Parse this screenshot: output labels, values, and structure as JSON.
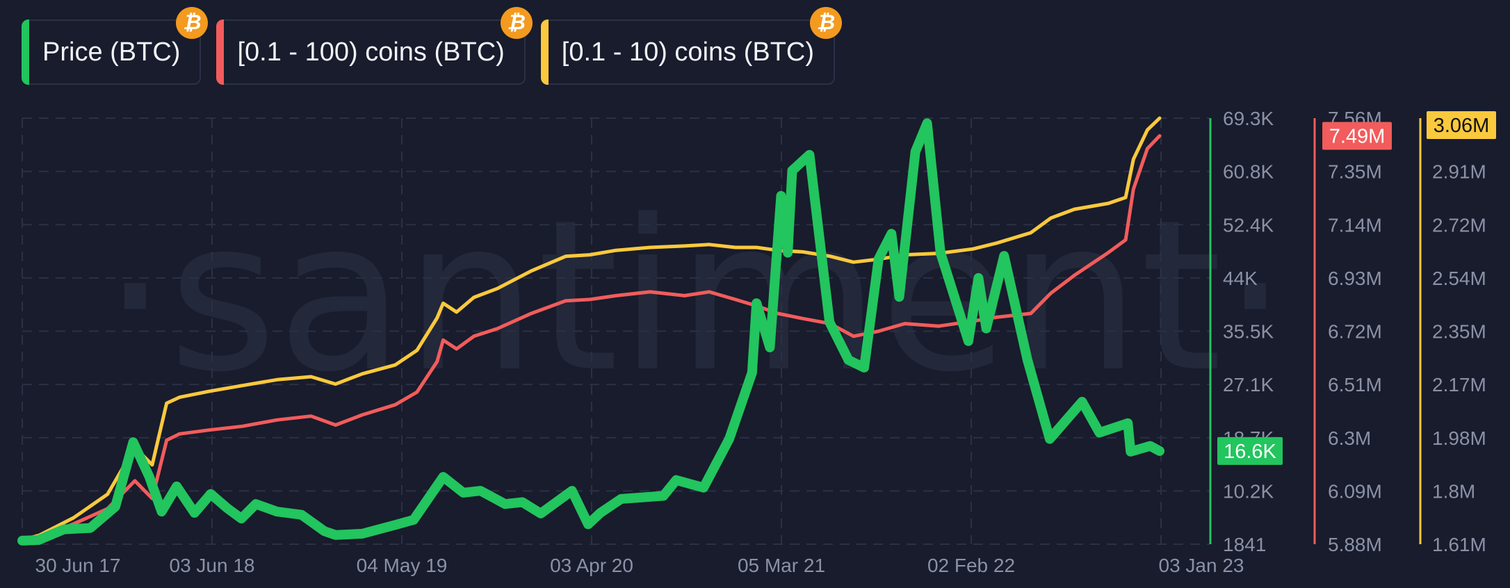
{
  "legend": [
    {
      "label": "Price (BTC)",
      "color": "#22c55e",
      "icon": "bitcoin-icon"
    },
    {
      "label": "[0.1 - 100) coins (BTC)",
      "color": "#f25c5c",
      "icon": "bitcoin-icon"
    },
    {
      "label": "[0.1 - 10) coins (BTC)",
      "color": "#fbc93d",
      "icon": "bitcoin-icon"
    }
  ],
  "watermark": "·santiment·",
  "chart_data": {
    "type": "line",
    "x_ticks": [
      "30 Jun 17",
      "03 Jun 18",
      "04 May 19",
      "03 Apr 20",
      "05 Mar 21",
      "02 Feb 22",
      "03 Jan 23"
    ],
    "axes": {
      "price": {
        "labels": [
          "69.3K",
          "60.8K",
          "52.4K",
          "44K",
          "35.5K",
          "27.1K",
          "18.7K",
          "10.2K",
          "1841"
        ],
        "current": "16.6K",
        "color": "#22c55e"
      },
      "coins_100": {
        "labels": [
          "7.56M",
          "7.35M",
          "7.14M",
          "6.93M",
          "6.72M",
          "6.51M",
          "6.3M",
          "6.09M",
          "5.88M"
        ],
        "current": "7.49M",
        "color": "#f25c5c"
      },
      "coins_10": {
        "labels": [
          "3.06M",
          "2.91M",
          "2.72M",
          "2.54M",
          "2.35M",
          "2.17M",
          "1.98M",
          "1.8M",
          "1.61M"
        ],
        "current": "3.06M",
        "color": "#fbc93d"
      }
    },
    "series": [
      {
        "name": "Price (BTC)",
        "color": "#22c55e",
        "axis": "price",
        "points": [
          [
            "2017-06-01",
            2400
          ],
          [
            "2017-06-30",
            2500
          ],
          [
            "2017-08-15",
            4200
          ],
          [
            "2017-10-01",
            4400
          ],
          [
            "2017-11-15",
            7800
          ],
          [
            "2017-12-17",
            18000
          ],
          [
            "2018-01-15",
            12500
          ],
          [
            "2018-02-06",
            7000
          ],
          [
            "2018-03-05",
            11000
          ],
          [
            "2018-04-06",
            6800
          ],
          [
            "2018-05-05",
            9800
          ],
          [
            "2018-06-03",
            7600
          ],
          [
            "2018-06-29",
            5900
          ],
          [
            "2018-07-25",
            8200
          ],
          [
            "2018-09-01",
            7000
          ],
          [
            "2018-10-15",
            6500
          ],
          [
            "2018-11-25",
            3900
          ],
          [
            "2018-12-15",
            3300
          ],
          [
            "2019-02-01",
            3500
          ],
          [
            "2019-04-01",
            4900
          ],
          [
            "2019-05-04",
            5700
          ],
          [
            "2019-06-26",
            12500
          ],
          [
            "2019-08-01",
            10000
          ],
          [
            "2019-09-01",
            10300
          ],
          [
            "2019-10-15",
            8200
          ],
          [
            "2019-11-15",
            8500
          ],
          [
            "2019-12-18",
            6700
          ],
          [
            "2020-02-12",
            10300
          ],
          [
            "2020-03-12",
            5000
          ],
          [
            "2020-04-03",
            6800
          ],
          [
            "2020-05-10",
            9000
          ],
          [
            "2020-07-25",
            9500
          ],
          [
            "2020-08-17",
            12000
          ],
          [
            "2020-10-05",
            10800
          ],
          [
            "2020-11-20",
            18500
          ],
          [
            "2020-12-31",
            29000
          ],
          [
            "2021-01-08",
            40000
          ],
          [
            "2021-02-01",
            33000
          ],
          [
            "2021-02-21",
            57000
          ],
          [
            "2021-03-05",
            48000
          ],
          [
            "2021-03-13",
            61000
          ],
          [
            "2021-04-13",
            63500
          ],
          [
            "2021-05-19",
            37000
          ],
          [
            "2021-06-22",
            31000
          ],
          [
            "2021-07-20",
            29800
          ],
          [
            "2021-08-15",
            47000
          ],
          [
            "2021-09-07",
            51000
          ],
          [
            "2021-09-21",
            41000
          ],
          [
            "2021-10-20",
            64000
          ],
          [
            "2021-11-10",
            68500
          ],
          [
            "2021-12-04",
            48000
          ],
          [
            "2022-01-23",
            34000
          ],
          [
            "2022-02-10",
            44000
          ],
          [
            "2022-02-24",
            36000
          ],
          [
            "2022-03-28",
            47500
          ],
          [
            "2022-05-09",
            31000
          ],
          [
            "2022-06-18",
            18500
          ],
          [
            "2022-08-15",
            24400
          ],
          [
            "2022-09-15",
            19500
          ],
          [
            "2022-11-05",
            21000
          ],
          [
            "2022-11-10",
            16500
          ],
          [
            "2022-12-15",
            17400
          ],
          [
            "2023-01-01",
            16600
          ]
        ]
      },
      {
        "name": "[0.1 - 100) coins (BTC)",
        "color": "#f25c5c",
        "axis": "coins_100",
        "points": [
          [
            "2017-06-01",
            5.895
          ],
          [
            "2017-07-01",
            5.91
          ],
          [
            "2017-09-01",
            5.96
          ],
          [
            "2017-11-01",
            6.02
          ],
          [
            "2017-12-20",
            6.13
          ],
          [
            "2018-01-20",
            6.06
          ],
          [
            "2018-02-15",
            6.29
          ],
          [
            "2018-03-10",
            6.315
          ],
          [
            "2018-05-01",
            6.33
          ],
          [
            "2018-07-01",
            6.345
          ],
          [
            "2018-09-01",
            6.37
          ],
          [
            "2018-11-01",
            6.385
          ],
          [
            "2018-12-15",
            6.35
          ],
          [
            "2019-02-01",
            6.39
          ],
          [
            "2019-04-01",
            6.43
          ],
          [
            "2019-05-10",
            6.48
          ],
          [
            "2019-06-15",
            6.6
          ],
          [
            "2019-06-26",
            6.685
          ],
          [
            "2019-07-20",
            6.65
          ],
          [
            "2019-08-20",
            6.7
          ],
          [
            "2019-10-01",
            6.73
          ],
          [
            "2019-12-01",
            6.79
          ],
          [
            "2020-02-01",
            6.84
          ],
          [
            "2020-03-15",
            6.845
          ],
          [
            "2020-05-01",
            6.86
          ],
          [
            "2020-07-01",
            6.875
          ],
          [
            "2020-09-01",
            6.86
          ],
          [
            "2020-10-15",
            6.875
          ],
          [
            "2020-12-01",
            6.845
          ],
          [
            "2021-01-08",
            6.82
          ],
          [
            "2021-02-15",
            6.79
          ],
          [
            "2021-04-01",
            6.77
          ],
          [
            "2021-05-20",
            6.75
          ],
          [
            "2021-07-01",
            6.7
          ],
          [
            "2021-08-15",
            6.72
          ],
          [
            "2021-10-01",
            6.75
          ],
          [
            "2021-12-01",
            6.74
          ],
          [
            "2022-02-01",
            6.76
          ],
          [
            "2022-03-15",
            6.775
          ],
          [
            "2022-05-15",
            6.79
          ],
          [
            "2022-06-20",
            6.87
          ],
          [
            "2022-08-01",
            6.94
          ],
          [
            "2022-10-01",
            7.03
          ],
          [
            "2022-11-01",
            7.08
          ],
          [
            "2022-11-15",
            7.28
          ],
          [
            "2022-12-10",
            7.44
          ],
          [
            "2023-01-01",
            7.49
          ]
        ]
      },
      {
        "name": "[0.1 - 10) coins (BTC)",
        "color": "#fbc93d",
        "axis": "coins_10",
        "points": [
          [
            "2017-06-01",
            1.625
          ],
          [
            "2017-07-01",
            1.64
          ],
          [
            "2017-09-01",
            1.7
          ],
          [
            "2017-11-01",
            1.78
          ],
          [
            "2017-12-20",
            1.94
          ],
          [
            "2018-01-20",
            1.88
          ],
          [
            "2018-02-15",
            2.09
          ],
          [
            "2018-03-10",
            2.11
          ],
          [
            "2018-05-01",
            2.13
          ],
          [
            "2018-07-01",
            2.15
          ],
          [
            "2018-09-01",
            2.17
          ],
          [
            "2018-11-01",
            2.18
          ],
          [
            "2018-12-15",
            2.155
          ],
          [
            "2019-02-01",
            2.19
          ],
          [
            "2019-04-01",
            2.22
          ],
          [
            "2019-05-10",
            2.27
          ],
          [
            "2019-06-15",
            2.38
          ],
          [
            "2019-06-26",
            2.43
          ],
          [
            "2019-07-20",
            2.4
          ],
          [
            "2019-08-20",
            2.45
          ],
          [
            "2019-10-01",
            2.48
          ],
          [
            "2019-12-01",
            2.54
          ],
          [
            "2020-02-01",
            2.59
          ],
          [
            "2020-03-15",
            2.595
          ],
          [
            "2020-05-01",
            2.61
          ],
          [
            "2020-07-01",
            2.62
          ],
          [
            "2020-09-01",
            2.625
          ],
          [
            "2020-10-15",
            2.63
          ],
          [
            "2020-12-01",
            2.62
          ],
          [
            "2021-01-08",
            2.62
          ],
          [
            "2021-02-15",
            2.61
          ],
          [
            "2021-04-01",
            2.605
          ],
          [
            "2021-05-20",
            2.59
          ],
          [
            "2021-07-01",
            2.57
          ],
          [
            "2021-08-15",
            2.58
          ],
          [
            "2021-10-01",
            2.595
          ],
          [
            "2021-12-01",
            2.6
          ],
          [
            "2022-02-01",
            2.615
          ],
          [
            "2022-03-15",
            2.635
          ],
          [
            "2022-05-15",
            2.67
          ],
          [
            "2022-06-20",
            2.72
          ],
          [
            "2022-08-01",
            2.75
          ],
          [
            "2022-10-01",
            2.77
          ],
          [
            "2022-11-01",
            2.79
          ],
          [
            "2022-11-15",
            2.92
          ],
          [
            "2022-12-10",
            3.02
          ],
          [
            "2023-01-01",
            3.06
          ]
        ]
      }
    ],
    "grid": true,
    "legend_position": "top-left"
  }
}
